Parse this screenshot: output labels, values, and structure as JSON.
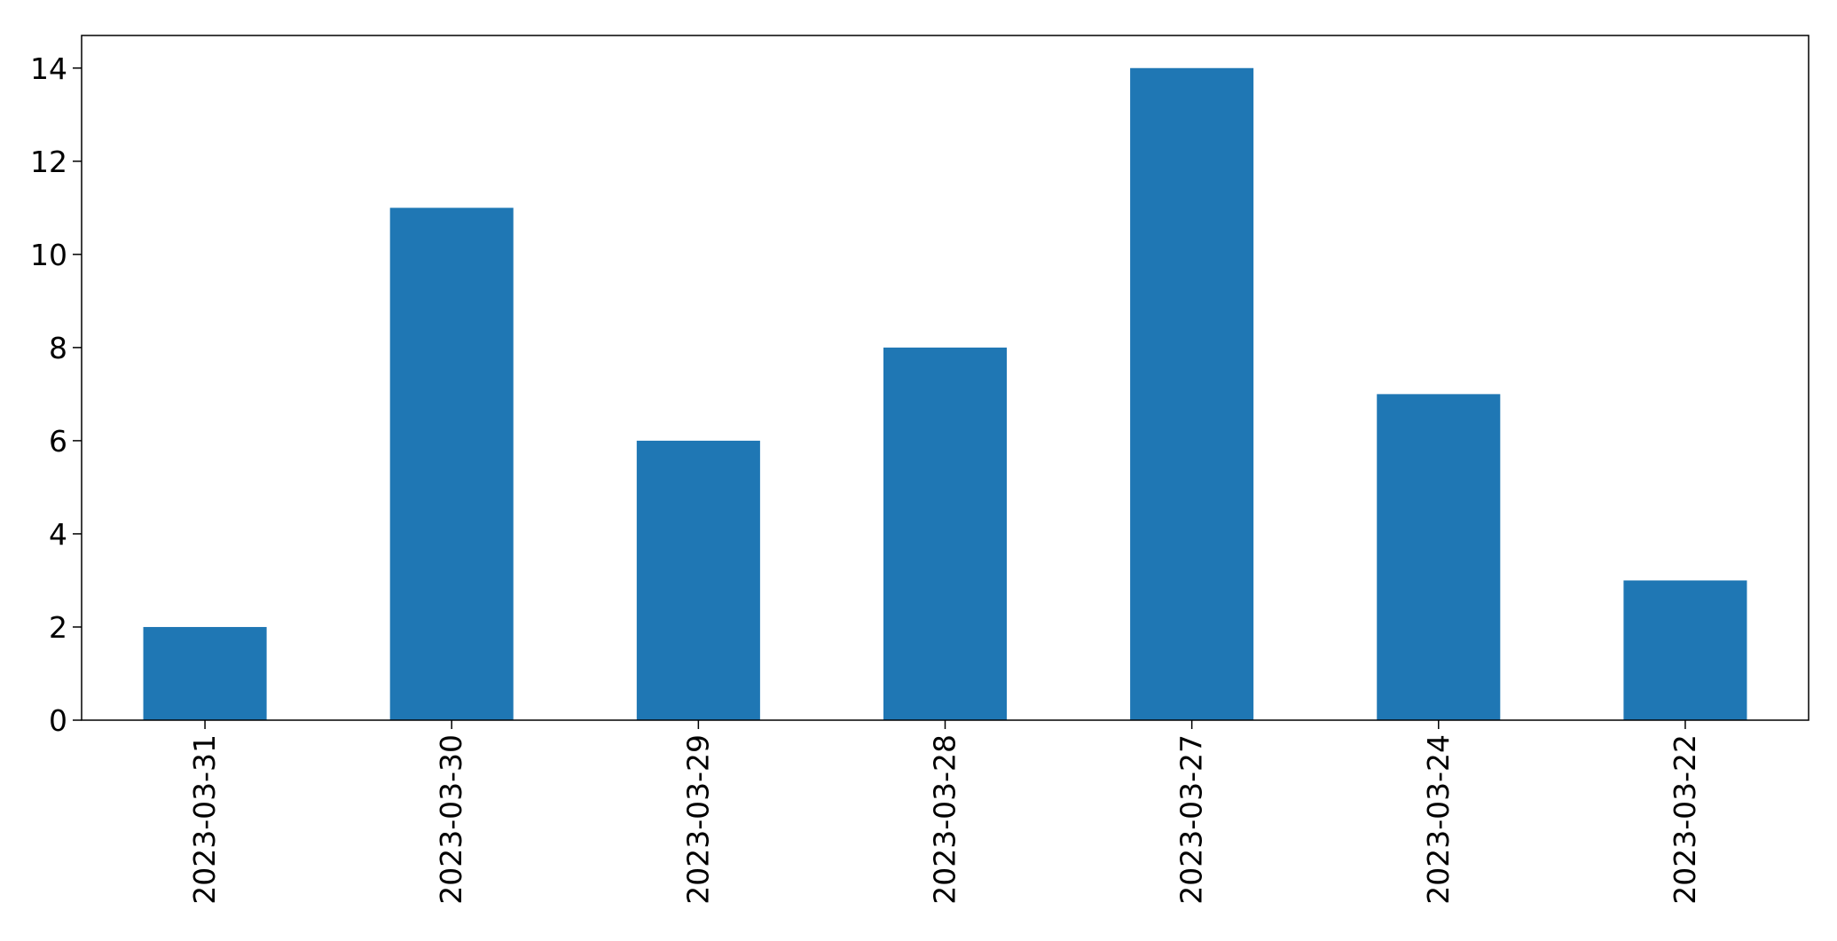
{
  "chart_data": {
    "type": "bar",
    "title": "",
    "xlabel": "",
    "ylabel": "",
    "categories": [
      "2023-03-31",
      "2023-03-30",
      "2023-03-29",
      "2023-03-28",
      "2023-03-27",
      "2023-03-24",
      "2023-03-22"
    ],
    "values": [
      2,
      11,
      6,
      8,
      14,
      7,
      3
    ],
    "ylim": [
      0,
      14.7
    ],
    "yticks": [
      0,
      2,
      4,
      6,
      8,
      10,
      12,
      14
    ],
    "grid": false,
    "legend": "none",
    "bar_color": "#1f77b4"
  }
}
